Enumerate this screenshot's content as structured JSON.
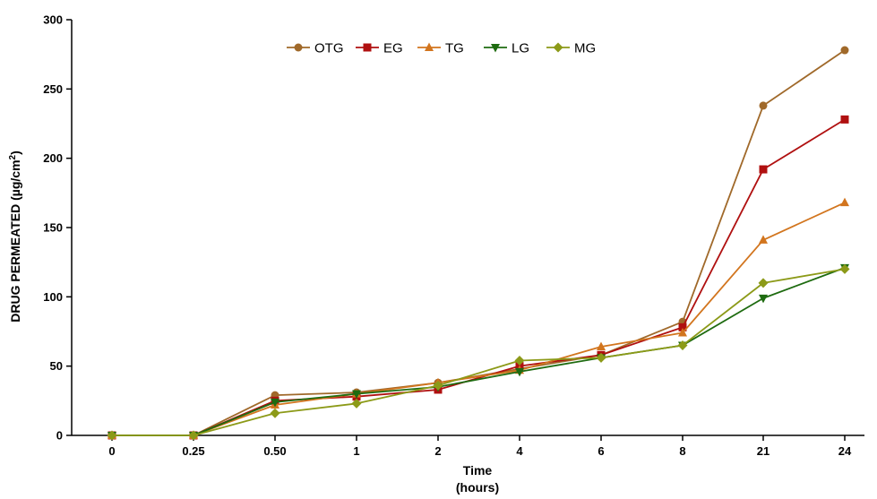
{
  "chart_data": {
    "type": "line",
    "title": "",
    "categories": [
      "0",
      "0.25",
      "0.50",
      "1",
      "2",
      "4",
      "6",
      "8",
      "21",
      "24"
    ],
    "xlabel_line1": "Time",
    "xlabel_line2": "(hours)",
    "ylabel": "DRUG PERMEATED (µg/cm",
    "ylabel_sup": "2",
    "ylabel_end": ")",
    "ylim": [
      0,
      300
    ],
    "yticks": [
      0,
      50,
      100,
      150,
      200,
      250,
      300
    ],
    "grid": false,
    "legend_position": "top-center",
    "series": [
      {
        "name": "OTG",
        "marker": "circle",
        "color": "#A0692A",
        "values": [
          0,
          0,
          29,
          31,
          38,
          48,
          58,
          82,
          238,
          278
        ]
      },
      {
        "name": "EG",
        "marker": "square",
        "color": "#B01010",
        "values": [
          0,
          0,
          25,
          28,
          33,
          50,
          58,
          78,
          192,
          228
        ]
      },
      {
        "name": "TG",
        "marker": "triangle-up",
        "color": "#D2751E",
        "values": [
          0,
          0,
          22,
          30,
          38,
          47,
          64,
          74,
          141,
          168
        ]
      },
      {
        "name": "LG",
        "marker": "triangle-down",
        "color": "#1E6B10",
        "values": [
          0,
          0,
          24,
          30,
          35,
          46,
          56,
          65,
          99,
          121
        ]
      },
      {
        "name": "MG",
        "marker": "diamond",
        "color": "#8C9A18",
        "values": [
          0,
          0,
          16,
          23,
          36,
          54,
          56,
          65,
          110,
          120
        ]
      }
    ]
  }
}
